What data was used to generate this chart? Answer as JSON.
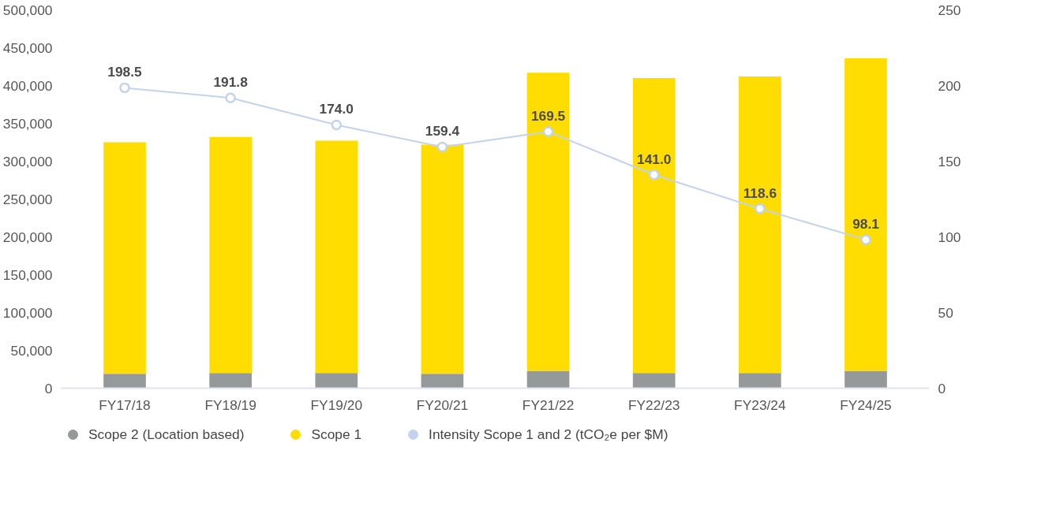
{
  "chart_data": {
    "type": "bar",
    "stacked": true,
    "categories": [
      "FY17/18",
      "FY18/19",
      "FY19/20",
      "FY20/21",
      "FY21/22",
      "FY22/23",
      "FY23/24",
      "FY24/25"
    ],
    "series": [
      {
        "name": "Scope 2 (Location based)",
        "color": "#959999",
        "values": [
          19000,
          20000,
          20000,
          19000,
          23000,
          20000,
          20000,
          23000
        ]
      },
      {
        "name": "Scope 1",
        "color": "#ffdd00",
        "values": [
          306000,
          312000,
          307000,
          303000,
          394000,
          390000,
          392000,
          413000
        ]
      },
      {
        "name": "Intensity Scope 1 and 2 (tCO₂e per $M)",
        "type": "line",
        "axis": "y2",
        "color": "#c4d3ec",
        "marker": "circle",
        "values": [
          198.5,
          191.8,
          174.0,
          159.4,
          169.5,
          141.0,
          118.6,
          98.1
        ],
        "value_labels": [
          "198.5",
          "191.8",
          "174.0",
          "159.4",
          "169.5",
          "141.0",
          "118.6",
          "98.1"
        ]
      }
    ],
    "ylim": [
      0,
      500000
    ],
    "yticks": [
      {
        "value": 0,
        "label": "0"
      },
      {
        "value": 50000,
        "label": "50,000"
      },
      {
        "value": 100000,
        "label": "100,000"
      },
      {
        "value": 150000,
        "label": "150,000"
      },
      {
        "value": 200000,
        "label": "200,000"
      },
      {
        "value": 250000,
        "label": "250,000"
      },
      {
        "value": 300000,
        "label": "300,000"
      },
      {
        "value": 350000,
        "label": "350,000"
      },
      {
        "value": 400000,
        "label": "400,000"
      },
      {
        "value": 450000,
        "label": "450,000"
      },
      {
        "value": 500000,
        "label": "500,000"
      }
    ],
    "y2lim": [
      0,
      250
    ],
    "y2ticks": [
      0,
      50,
      100,
      150,
      200,
      250
    ],
    "grid": false,
    "legend": "bottom"
  }
}
